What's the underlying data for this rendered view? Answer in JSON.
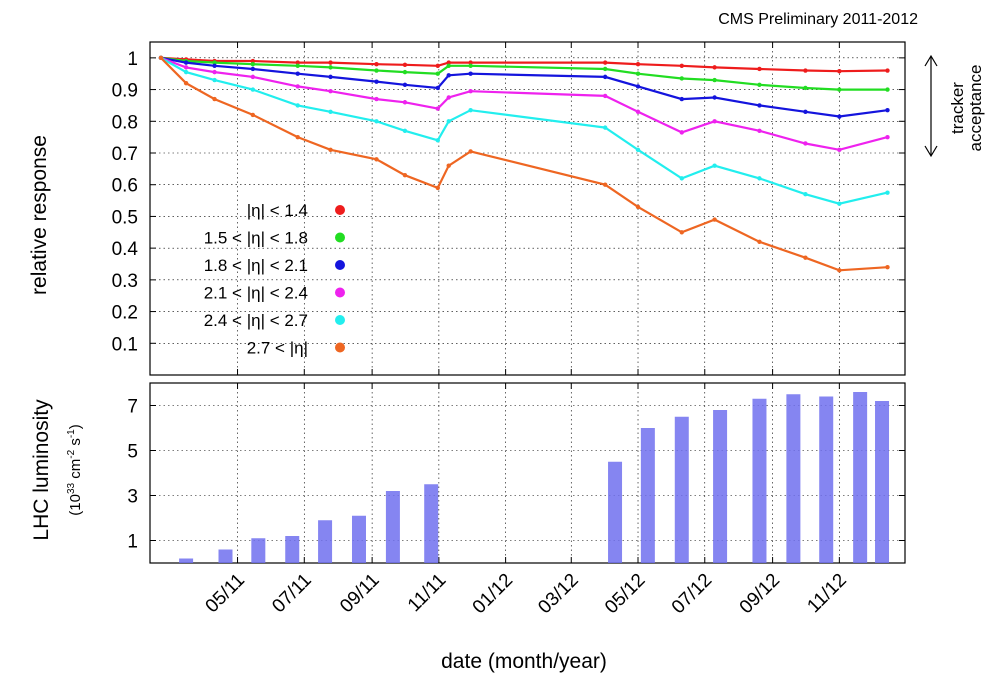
{
  "chart_data": [
    {
      "type": "scatter",
      "title": "CMS Preliminary 2011-2012",
      "ylabel": "relative response",
      "ylim": [
        0,
        1.05
      ],
      "yticks": [
        "1",
        "0.9",
        "0.8",
        "0.7",
        "0.6",
        "0.5",
        "0.4",
        "0.3",
        "0.2",
        "0.1"
      ],
      "grid": true,
      "legend_position": "middle-left",
      "annotation": {
        "line1": "tracker",
        "line2": "acceptance"
      },
      "series": [
        {
          "name": "|η| < 1.4",
          "color": "#ee1c1c",
          "x": [
            "2011-02-20",
            "2011-03-15",
            "2011-04-10",
            "2011-05-15",
            "2011-06-25",
            "2011-07-25",
            "2011-09-05",
            "2011-10-01",
            "2011-10-31",
            "2011-11-10",
            "2011-11-30",
            "2012-04-01",
            "2012-05-01",
            "2012-06-10",
            "2012-07-10",
            "2012-08-20",
            "2012-10-01",
            "2012-11-01",
            "2012-12-15"
          ],
          "y": [
            1.0,
            0.995,
            0.99,
            0.99,
            0.985,
            0.985,
            0.98,
            0.978,
            0.975,
            0.985,
            0.985,
            0.985,
            0.98,
            0.975,
            0.97,
            0.965,
            0.96,
            0.958,
            0.96
          ]
        },
        {
          "name": "1.5 < |η| < 1.8",
          "color": "#22dd22",
          "x": [
            "2011-02-20",
            "2011-03-15",
            "2011-04-10",
            "2011-05-15",
            "2011-06-25",
            "2011-07-25",
            "2011-09-05",
            "2011-10-01",
            "2011-10-31",
            "2011-11-10",
            "2011-11-30",
            "2012-04-01",
            "2012-05-01",
            "2012-06-10",
            "2012-07-10",
            "2012-08-20",
            "2012-10-01",
            "2012-11-01",
            "2012-12-15"
          ],
          "y": [
            1.0,
            0.99,
            0.985,
            0.98,
            0.975,
            0.97,
            0.96,
            0.955,
            0.95,
            0.975,
            0.975,
            0.965,
            0.95,
            0.935,
            0.93,
            0.915,
            0.905,
            0.9,
            0.9
          ]
        },
        {
          "name": "1.8 < |η| < 2.1",
          "color": "#1414dd",
          "x": [
            "2011-02-20",
            "2011-03-15",
            "2011-04-10",
            "2011-05-15",
            "2011-06-25",
            "2011-07-25",
            "2011-09-05",
            "2011-10-01",
            "2011-10-31",
            "2011-11-10",
            "2011-11-30",
            "2012-04-01",
            "2012-05-01",
            "2012-06-10",
            "2012-07-10",
            "2012-08-20",
            "2012-10-01",
            "2012-11-01",
            "2012-12-15"
          ],
          "y": [
            1.0,
            0.985,
            0.975,
            0.965,
            0.95,
            0.94,
            0.925,
            0.915,
            0.905,
            0.945,
            0.95,
            0.94,
            0.91,
            0.87,
            0.875,
            0.85,
            0.83,
            0.815,
            0.835
          ]
        },
        {
          "name": "2.1 < |η| < 2.4",
          "color": "#ee22ee",
          "x": [
            "2011-02-20",
            "2011-03-15",
            "2011-04-10",
            "2011-05-15",
            "2011-06-25",
            "2011-07-25",
            "2011-09-05",
            "2011-10-01",
            "2011-10-31",
            "2011-11-10",
            "2011-11-30",
            "2012-04-01",
            "2012-05-01",
            "2012-06-10",
            "2012-07-10",
            "2012-08-20",
            "2012-10-01",
            "2012-11-01",
            "2012-12-15"
          ],
          "y": [
            1.0,
            0.97,
            0.955,
            0.94,
            0.91,
            0.895,
            0.87,
            0.86,
            0.84,
            0.875,
            0.895,
            0.88,
            0.83,
            0.765,
            0.8,
            0.77,
            0.73,
            0.71,
            0.75
          ]
        },
        {
          "name": "2.4 < |η| < 2.7",
          "color": "#22eeee",
          "x": [
            "2011-02-20",
            "2011-03-15",
            "2011-04-10",
            "2011-05-15",
            "2011-06-25",
            "2011-07-25",
            "2011-09-05",
            "2011-10-01",
            "2011-10-31",
            "2011-11-10",
            "2011-11-30",
            "2012-04-01",
            "2012-05-01",
            "2012-06-10",
            "2012-07-10",
            "2012-08-20",
            "2012-10-01",
            "2012-11-01",
            "2012-12-15"
          ],
          "y": [
            1.0,
            0.955,
            0.93,
            0.9,
            0.85,
            0.83,
            0.8,
            0.77,
            0.74,
            0.8,
            0.835,
            0.78,
            0.71,
            0.62,
            0.66,
            0.62,
            0.57,
            0.54,
            0.575
          ]
        },
        {
          "name": "2.7 < |η|",
          "color": "#ee6622",
          "x": [
            "2011-02-20",
            "2011-03-15",
            "2011-04-10",
            "2011-05-15",
            "2011-06-25",
            "2011-07-25",
            "2011-09-05",
            "2011-10-01",
            "2011-10-31",
            "2011-11-10",
            "2011-11-30",
            "2012-04-01",
            "2012-05-01",
            "2012-06-10",
            "2012-07-10",
            "2012-08-20",
            "2012-10-01",
            "2012-11-01",
            "2012-12-15"
          ],
          "y": [
            1.0,
            0.92,
            0.87,
            0.82,
            0.75,
            0.71,
            0.68,
            0.63,
            0.59,
            0.66,
            0.705,
            0.6,
            0.53,
            0.45,
            0.49,
            0.42,
            0.37,
            0.33,
            0.34
          ]
        }
      ]
    },
    {
      "type": "area",
      "ylabel": "LHC luminosity",
      "ylabel_unit_prefix": "(10",
      "ylabel_unit_exp1": "33",
      "ylabel_unit_mid": " cm",
      "ylabel_unit_exp2": "-2",
      "ylabel_unit_s": " s",
      "ylabel_unit_exp3": "-1",
      "ylabel_unit_end": ")",
      "xlabel": "date (month/year)",
      "ylim": [
        0,
        8
      ],
      "yticks": [
        "7",
        "5",
        "3",
        "1"
      ],
      "xticks": [
        "05/11",
        "07/11",
        "09/11",
        "11/11",
        "01/12",
        "03/12",
        "05/12",
        "07/12",
        "09/12",
        "11/12"
      ],
      "grid": true,
      "color": "#7070ee",
      "series": [
        {
          "name": "",
          "x": [
            "2011-03-15",
            "2011-04-20",
            "2011-05-20",
            "2011-06-20",
            "2011-07-20",
            "2011-08-20",
            "2011-09-20",
            "2011-10-25",
            "2012-04-10",
            "2012-05-10",
            "2012-06-10",
            "2012-07-15",
            "2012-08-20",
            "2012-09-20",
            "2012-10-20",
            "2012-11-20",
            "2012-12-10"
          ],
          "y": [
            0.2,
            0.6,
            1.1,
            1.2,
            1.9,
            2.1,
            3.2,
            3.5,
            4.5,
            6.0,
            6.5,
            6.8,
            7.3,
            7.5,
            7.4,
            7.6,
            7.2
          ]
        }
      ]
    }
  ]
}
